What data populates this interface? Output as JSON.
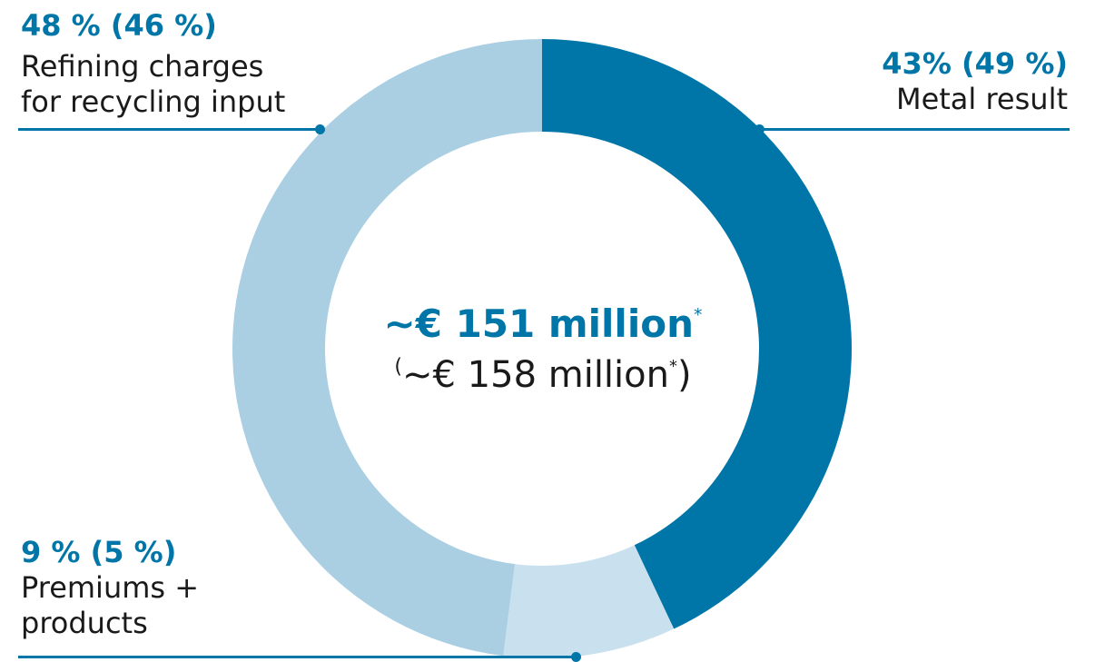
{
  "colors": {
    "dark": "#0076a8",
    "light": "#aacfe3",
    "lighter": "#c9e1ee",
    "text": "#1a1a1a"
  },
  "center": {
    "total": "~€ 151 million",
    "total_mark": "*",
    "prev_open": "(",
    "prev_value": "~€ 158 million",
    "prev_mark": "*",
    "prev_close": ")"
  },
  "chart_data": {
    "type": "pie",
    "subtype": "donut",
    "slices": [
      {
        "label_lines": [
          "Metal result"
        ],
        "share": "43% (49 %)",
        "value": 43,
        "prior_value": 49,
        "color": "#0076a8"
      },
      {
        "label_lines": [
          "Premiums +",
          "products"
        ],
        "share": "9 % (5 %)",
        "value": 9,
        "prior_value": 5,
        "color": "#c9e1ee"
      },
      {
        "label_lines": [
          "Refining charges",
          "for recycling input"
        ],
        "share": "48 % (46 %)",
        "value": 48,
        "prior_value": 46,
        "color": "#aacfe3"
      }
    ]
  }
}
